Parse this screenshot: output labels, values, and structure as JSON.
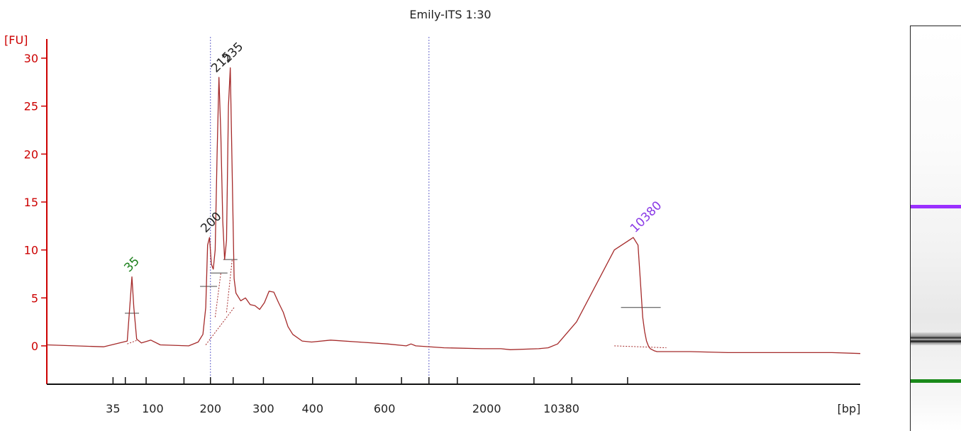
{
  "chart_data": {
    "type": "line",
    "title": "Emily-ITS 1:30",
    "ylabel": "[FU]",
    "xlabel": "[bp]",
    "ylim": [
      -4,
      32
    ],
    "yticks": [
      0,
      5,
      10,
      15,
      20,
      25,
      30
    ],
    "xtick_labels": [
      "35",
      "100",
      "200",
      "300",
      "400",
      "600",
      "2000",
      "10380"
    ],
    "grid": false,
    "series": [
      {
        "color": "#a52a2a",
        "x": [
          0,
          60,
          85,
          88,
          90,
          92,
          95,
          100,
          110,
          120,
          150,
          160,
          165,
          168,
          170,
          172,
          174,
          176,
          178,
          180,
          182,
          184,
          186,
          188,
          190,
          192,
          194,
          196,
          198,
          200,
          205,
          210,
          215,
          220,
          225,
          230,
          235,
          240,
          245,
          250,
          255,
          260,
          270,
          280,
          300,
          330,
          360,
          380,
          385,
          390,
          420,
          460,
          480,
          490,
          520,
          530,
          540,
          560,
          600,
          620,
          625,
          628,
          630,
          632,
          634,
          636,
          638,
          640,
          642,
          645,
          650,
          655,
          660,
          680,
          720,
          780,
          830,
          860
        ],
        "y": [
          0.1,
          -0.1,
          0.5,
          4.5,
          7.2,
          4.0,
          0.7,
          0.3,
          0.6,
          0.1,
          0.0,
          0.4,
          1.2,
          4.0,
          10.5,
          11.3,
          8.5,
          8.0,
          10.0,
          20.0,
          28.0,
          22.0,
          13.0,
          9.0,
          11.0,
          25.0,
          29.0,
          18.0,
          7.0,
          5.5,
          4.7,
          5.0,
          4.3,
          4.2,
          3.8,
          4.5,
          5.7,
          5.6,
          4.5,
          3.5,
          2.0,
          1.2,
          0.5,
          0.4,
          0.6,
          0.4,
          0.2,
          0.0,
          0.2,
          0.0,
          -0.2,
          -0.3,
          -0.3,
          -0.4,
          -0.3,
          -0.2,
          0.2,
          2.5,
          10.0,
          11.3,
          10.5,
          6.0,
          3.0,
          1.5,
          0.5,
          0.0,
          -0.3,
          -0.4,
          -0.5,
          -0.6,
          -0.6,
          -0.6,
          -0.6,
          -0.6,
          -0.7,
          -0.7,
          -0.7,
          -0.8
        ]
      }
    ],
    "peak_labels": [
      {
        "text": "35",
        "x": 90,
        "y": 7.2,
        "color": "#1a7f1a"
      },
      {
        "text": "200",
        "x": 171,
        "y": 11.3,
        "color": "#222222"
      },
      {
        "text": "215",
        "x": 182,
        "y": 28.0,
        "color": "#222222"
      },
      {
        "text": "235",
        "x": 194,
        "y": 29.0,
        "color": "#222222"
      },
      {
        "text": "10380",
        "x": 625,
        "y": 11.3,
        "color": "#8a3ae6"
      }
    ],
    "markers_lower_color": "#00a000",
    "markers_upper_color": "#8a2be2",
    "axis_color": "#cc0000",
    "guide_color": "#6666cc"
  },
  "gel": {
    "upper_marker_color": "#9b30ff",
    "lower_marker_color": "#1a8a1a"
  }
}
